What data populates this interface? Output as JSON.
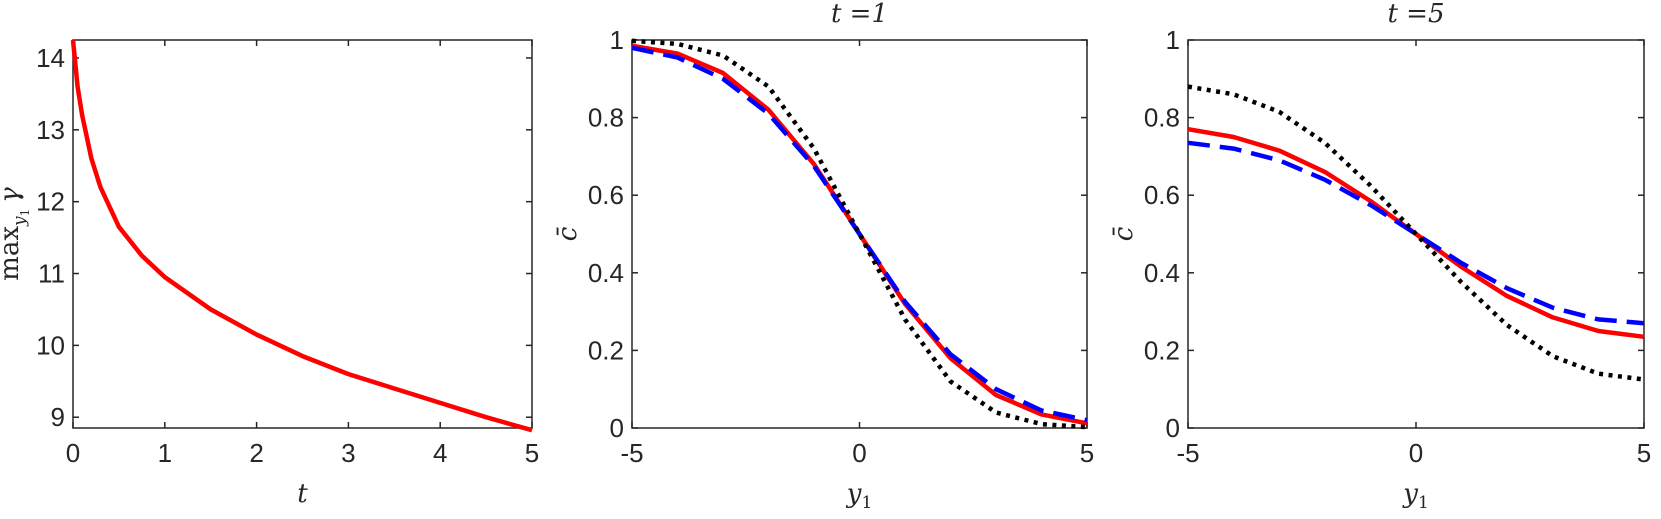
{
  "chart_data": [
    {
      "type": "line",
      "title": "",
      "xlabel": "t",
      "ylabel": {
        "text": "max",
        "sub": "y",
        "subsub": "1",
        "sym": "γ"
      },
      "xlim": [
        0,
        5
      ],
      "ylim": [
        8.85,
        14.25
      ],
      "xticks": [
        0,
        1,
        2,
        3,
        4,
        5
      ],
      "xtick_labels": [
        "0",
        "1",
        "2",
        "3",
        "4",
        "5"
      ],
      "yticks": [
        9,
        10,
        11,
        12,
        13,
        14
      ],
      "ytick_labels": [
        "9",
        "10",
        "11",
        "12",
        "13",
        "14"
      ],
      "grid": false,
      "series": [
        {
          "color": "#ff0000",
          "style": "solid",
          "x": [
            0,
            0.05,
            0.1,
            0.2,
            0.3,
            0.5,
            0.75,
            1,
            1.5,
            2,
            2.5,
            3,
            3.5,
            4,
            4.5,
            5
          ],
          "y": [
            14.25,
            13.6,
            13.2,
            12.6,
            12.2,
            11.65,
            11.25,
            10.95,
            10.5,
            10.15,
            9.85,
            9.6,
            9.4,
            9.2,
            9.0,
            8.82
          ]
        }
      ]
    },
    {
      "type": "line",
      "title": "t =1",
      "xlabel": {
        "text": "y",
        "sub": "1"
      },
      "ylabel": "c̄",
      "xlim": [
        -5,
        5
      ],
      "ylim": [
        0,
        1
      ],
      "xticks": [
        -5,
        0,
        5
      ],
      "xtick_labels": [
        "-5",
        "0",
        "5"
      ],
      "yticks": [
        0,
        0.2,
        0.4,
        0.6,
        0.8,
        1
      ],
      "ytick_labels": [
        "0",
        "0.2",
        "0.4",
        "0.6",
        "0.8",
        "1"
      ],
      "grid": false,
      "series": [
        {
          "color": "#ff0000",
          "style": "solid",
          "x": [
            -5,
            -4,
            -3,
            -2,
            -1,
            0,
            1,
            2,
            3,
            4,
            5
          ],
          "y": [
            0.985,
            0.965,
            0.915,
            0.82,
            0.68,
            0.5,
            0.32,
            0.18,
            0.085,
            0.035,
            0.012
          ]
        },
        {
          "color": "#0000ff",
          "style": "dashed",
          "x": [
            -5,
            -4,
            -3,
            -2,
            -1,
            0,
            1,
            2,
            3,
            4,
            5
          ],
          "y": [
            0.98,
            0.955,
            0.9,
            0.81,
            0.675,
            0.5,
            0.325,
            0.19,
            0.1,
            0.045,
            0.02
          ]
        },
        {
          "color": "#000000",
          "style": "dotted",
          "x": [
            -5,
            -4,
            -3,
            -2,
            -1,
            0,
            1,
            2,
            3,
            4,
            5
          ],
          "y": [
            0.998,
            0.99,
            0.96,
            0.88,
            0.72,
            0.5,
            0.28,
            0.12,
            0.04,
            0.01,
            0.002
          ]
        }
      ]
    },
    {
      "type": "line",
      "title": "t =5",
      "xlabel": {
        "text": "y",
        "sub": "1"
      },
      "ylabel": "c̄",
      "xlim": [
        -5,
        5
      ],
      "ylim": [
        0,
        1
      ],
      "xticks": [
        -5,
        0,
        5
      ],
      "xtick_labels": [
        "-5",
        "0",
        "5"
      ],
      "yticks": [
        0,
        0.2,
        0.4,
        0.6,
        0.8,
        1
      ],
      "ytick_labels": [
        "0",
        "0.2",
        "0.4",
        "0.6",
        "0.8",
        "1"
      ],
      "grid": false,
      "series": [
        {
          "color": "#ff0000",
          "style": "solid",
          "x": [
            -5,
            -4,
            -3,
            -2,
            -1,
            0,
            1,
            2,
            3,
            4,
            5
          ],
          "y": [
            0.77,
            0.75,
            0.715,
            0.66,
            0.585,
            0.5,
            0.415,
            0.34,
            0.285,
            0.25,
            0.235
          ]
        },
        {
          "color": "#0000ff",
          "style": "dashed",
          "x": [
            -5,
            -4,
            -3,
            -2,
            -1,
            0,
            1,
            2,
            3,
            4,
            5
          ],
          "y": [
            0.735,
            0.72,
            0.69,
            0.64,
            0.575,
            0.5,
            0.425,
            0.36,
            0.31,
            0.28,
            0.27
          ]
        },
        {
          "color": "#000000",
          "style": "dotted",
          "x": [
            -5,
            -4,
            -3,
            -2,
            -1,
            0,
            1,
            2,
            3,
            4,
            5
          ],
          "y": [
            0.88,
            0.86,
            0.815,
            0.735,
            0.625,
            0.5,
            0.375,
            0.265,
            0.185,
            0.14,
            0.125
          ]
        }
      ]
    }
  ]
}
